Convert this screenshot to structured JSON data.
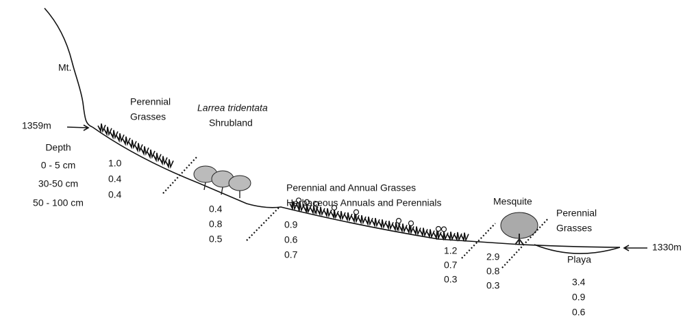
{
  "mountain_label": "Mt.",
  "elevation_top": "1359m",
  "elevation_bottom": "1330m",
  "depth": {
    "title": "Depth",
    "levels": [
      "0 - 5 cm",
      "30-50 cm",
      "50 - 100 cm"
    ]
  },
  "zones": [
    {
      "lines": [
        "Perennial",
        "Grasses"
      ]
    },
    {
      "species": "Larrea tridentata",
      "lines": [
        "Shrubland"
      ]
    },
    {
      "lines": [
        "Perennial and Annual Grasses",
        "Herbaceous Annuals and Perennials"
      ]
    },
    {
      "lines": [
        "Mesquite"
      ]
    },
    {
      "lines": [
        "Perennial",
        "Grasses"
      ]
    },
    {
      "lines": [
        "Playa"
      ]
    }
  ],
  "samples": [
    [
      "1.0",
      "0.4",
      "0.4"
    ],
    [
      "0.4",
      "0.8",
      "0.5"
    ],
    [
      "0.9",
      "0.6",
      "0.7"
    ],
    [
      "1.2",
      "0.7",
      "0.3"
    ],
    [
      "2.9",
      "0.8",
      "0.3"
    ],
    [
      "3.4",
      "0.9",
      "0.6"
    ]
  ]
}
